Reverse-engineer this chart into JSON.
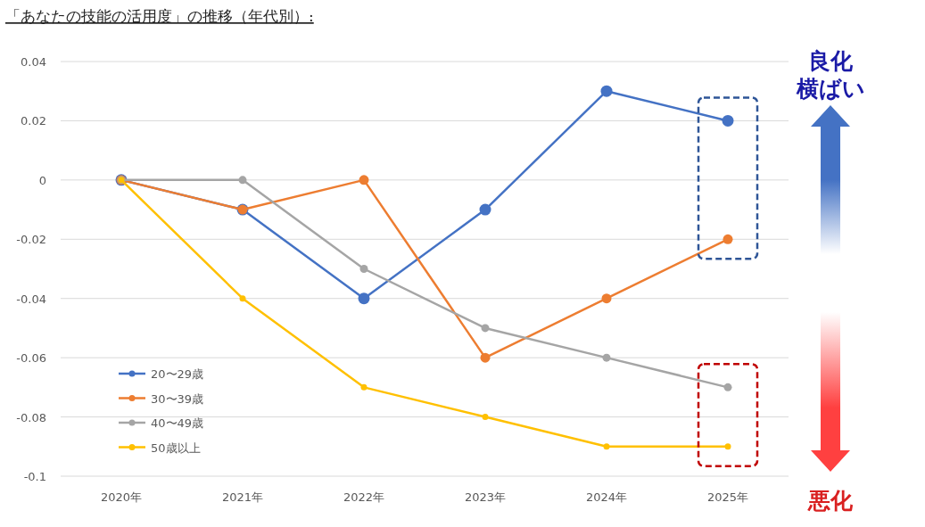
{
  "chart_data": {
    "type": "line",
    "title": "「あなたの技能の活用度」の推移（年代別）:",
    "categories": [
      "2020年",
      "2021年",
      "2022年",
      "2023年",
      "2024年",
      "2025年"
    ],
    "series": [
      {
        "name": "20〜29歳",
        "color": "#4472c4",
        "values": [
          0,
          -0.01,
          -0.04,
          -0.01,
          0.03,
          0.02
        ]
      },
      {
        "name": "30〜39歳",
        "color": "#ed7d31",
        "values": [
          0,
          -0.01,
          0,
          -0.06,
          -0.04,
          -0.02
        ]
      },
      {
        "name": "40〜49歳",
        "color": "#a5a5a5",
        "values": [
          0,
          0,
          -0.03,
          -0.05,
          -0.06,
          -0.07
        ]
      },
      {
        "name": "50歳以上",
        "color": "#ffc000",
        "values": [
          0,
          -0.04,
          -0.07,
          -0.08,
          -0.09,
          -0.09
        ]
      }
    ],
    "ylim": [
      -0.1,
      0.04
    ],
    "yticks": [
      0.04,
      0.02,
      0,
      -0.02,
      -0.04,
      -0.06,
      -0.08,
      -0.1
    ],
    "grid": "y",
    "legend": "bottom left",
    "marker": "circle",
    "line_style": "solid",
    "annotations": [
      "良化",
      "横ばい",
      "悪化"
    ]
  }
}
